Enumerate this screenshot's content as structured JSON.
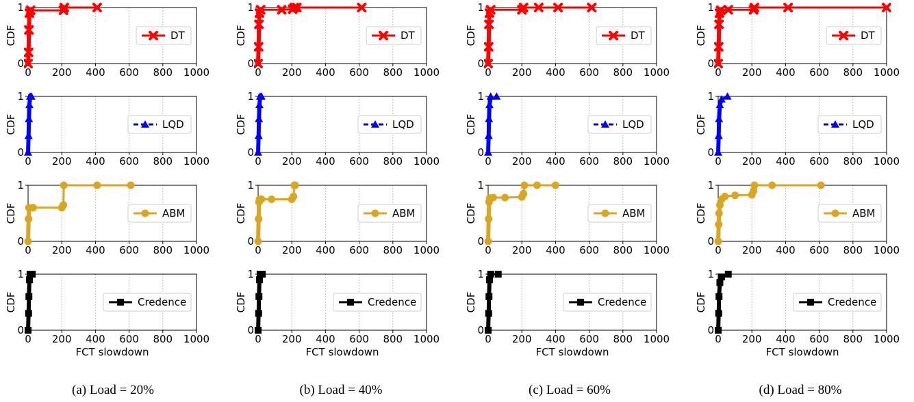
{
  "chart_data": {
    "type": "line",
    "x_axis_label": "FCT slowdown",
    "y_axis_label": "CDF",
    "xlim": [
      0,
      1000
    ],
    "ylim": [
      0,
      1
    ],
    "x_ticks": [
      0,
      200,
      400,
      600,
      800,
      1000
    ],
    "y_ticks": [
      0,
      1
    ],
    "grid": true,
    "legend_placement": "right",
    "series_styles": [
      {
        "name": "DT",
        "color": "#ff0000",
        "marker": "x",
        "line": "solid"
      },
      {
        "name": "LQD",
        "color": "#0000ff",
        "marker": "triangle",
        "line": "dashed"
      },
      {
        "name": "ABM",
        "color": "#daa520",
        "marker": "circle",
        "line": "solid"
      },
      {
        "name": "Credence",
        "color": "#000000",
        "marker": "square",
        "line": "solid"
      }
    ],
    "panels": [
      {
        "caption": "(a) Load = 20%",
        "series": {
          "DT": [
            [
              0,
              0
            ],
            [
              3,
              0.2
            ],
            [
              5,
              0.6
            ],
            [
              8,
              0.9
            ],
            [
              15,
              0.95
            ],
            [
              210,
              0.95
            ],
            [
              215,
              1.0
            ],
            [
              410,
              1.0
            ]
          ],
          "LQD": [
            [
              0,
              0
            ],
            [
              3,
              0.3
            ],
            [
              5,
              0.6
            ],
            [
              8,
              0.85
            ],
            [
              12,
              1.0
            ],
            [
              20,
              1.0
            ]
          ],
          "ABM": [
            [
              0,
              0
            ],
            [
              3,
              0.4
            ],
            [
              5,
              0.6
            ],
            [
              30,
              0.6
            ],
            [
              200,
              0.6
            ],
            [
              210,
              0.65
            ],
            [
              212,
              1.0
            ],
            [
              410,
              1.0
            ],
            [
              610,
              1.0
            ]
          ],
          "Credence": [
            [
              0,
              0
            ],
            [
              3,
              0.3
            ],
            [
              5,
              0.6
            ],
            [
              8,
              0.9
            ],
            [
              12,
              1.0
            ],
            [
              25,
              1.0
            ]
          ]
        }
      },
      {
        "caption": "(b) Load = 40%",
        "series": {
          "DT": [
            [
              0,
              0
            ],
            [
              3,
              0.3
            ],
            [
              5,
              0.7
            ],
            [
              8,
              0.9
            ],
            [
              15,
              0.96
            ],
            [
              140,
              0.96
            ],
            [
              205,
              0.97
            ],
            [
              215,
              1.0
            ],
            [
              230,
              1.0
            ],
            [
              615,
              1.0
            ]
          ],
          "LQD": [
            [
              0,
              0
            ],
            [
              3,
              0.3
            ],
            [
              5,
              0.6
            ],
            [
              8,
              0.85
            ],
            [
              12,
              1.0
            ],
            [
              20,
              1.0
            ]
          ],
          "ABM": [
            [
              0,
              0
            ],
            [
              3,
              0.4
            ],
            [
              5,
              0.7
            ],
            [
              8,
              0.75
            ],
            [
              20,
              0.75
            ],
            [
              80,
              0.75
            ],
            [
              200,
              0.75
            ],
            [
              210,
              0.8
            ],
            [
              215,
              1.0
            ],
            [
              220,
              1.0
            ]
          ],
          "Credence": [
            [
              0,
              0
            ],
            [
              3,
              0.3
            ],
            [
              5,
              0.6
            ],
            [
              8,
              0.9
            ],
            [
              12,
              1.0
            ],
            [
              25,
              1.0
            ]
          ]
        }
      },
      {
        "caption": "(c) Load = 60%",
        "series": {
          "DT": [
            [
              0,
              0
            ],
            [
              3,
              0.3
            ],
            [
              5,
              0.7
            ],
            [
              8,
              0.9
            ],
            [
              15,
              0.96
            ],
            [
              200,
              0.96
            ],
            [
              210,
              1.0
            ],
            [
              300,
              1.0
            ],
            [
              415,
              1.0
            ],
            [
              615,
              1.0
            ]
          ],
          "LQD": [
            [
              0,
              0
            ],
            [
              3,
              0.3
            ],
            [
              5,
              0.6
            ],
            [
              8,
              0.85
            ],
            [
              15,
              1.0
            ],
            [
              50,
              1.0
            ]
          ],
          "ABM": [
            [
              0,
              0
            ],
            [
              3,
              0.4
            ],
            [
              5,
              0.7
            ],
            [
              10,
              0.77
            ],
            [
              30,
              0.78
            ],
            [
              100,
              0.78
            ],
            [
              200,
              0.79
            ],
            [
              210,
              0.85
            ],
            [
              215,
              1.0
            ],
            [
              290,
              1.0
            ],
            [
              400,
              1.0
            ]
          ],
          "Credence": [
            [
              0,
              0
            ],
            [
              3,
              0.3
            ],
            [
              5,
              0.6
            ],
            [
              8,
              0.9
            ],
            [
              15,
              1.0
            ],
            [
              60,
              1.0
            ]
          ]
        }
      },
      {
        "caption": "(d) Load = 80%",
        "series": {
          "DT": [
            [
              0,
              0
            ],
            [
              3,
              0.3
            ],
            [
              5,
              0.7
            ],
            [
              8,
              0.9
            ],
            [
              15,
              0.95
            ],
            [
              60,
              0.96
            ],
            [
              210,
              0.96
            ],
            [
              215,
              1.0
            ],
            [
              415,
              1.0
            ],
            [
              1000,
              1.0
            ]
          ],
          "LQD": [
            [
              0,
              0
            ],
            [
              3,
              0.3
            ],
            [
              5,
              0.6
            ],
            [
              10,
              0.85
            ],
            [
              20,
              0.95
            ],
            [
              55,
              1.0
            ]
          ],
          "ABM": [
            [
              0,
              0
            ],
            [
              3,
              0.3
            ],
            [
              5,
              0.5
            ],
            [
              10,
              0.65
            ],
            [
              20,
              0.75
            ],
            [
              40,
              0.8
            ],
            [
              100,
              0.82
            ],
            [
              200,
              0.83
            ],
            [
              210,
              0.9
            ],
            [
              215,
              1.0
            ],
            [
              320,
              1.0
            ],
            [
              610,
              1.0
            ]
          ],
          "Credence": [
            [
              0,
              0
            ],
            [
              3,
              0.3
            ],
            [
              5,
              0.6
            ],
            [
              10,
              0.85
            ],
            [
              20,
              0.95
            ],
            [
              60,
              1.0
            ]
          ]
        }
      }
    ]
  }
}
